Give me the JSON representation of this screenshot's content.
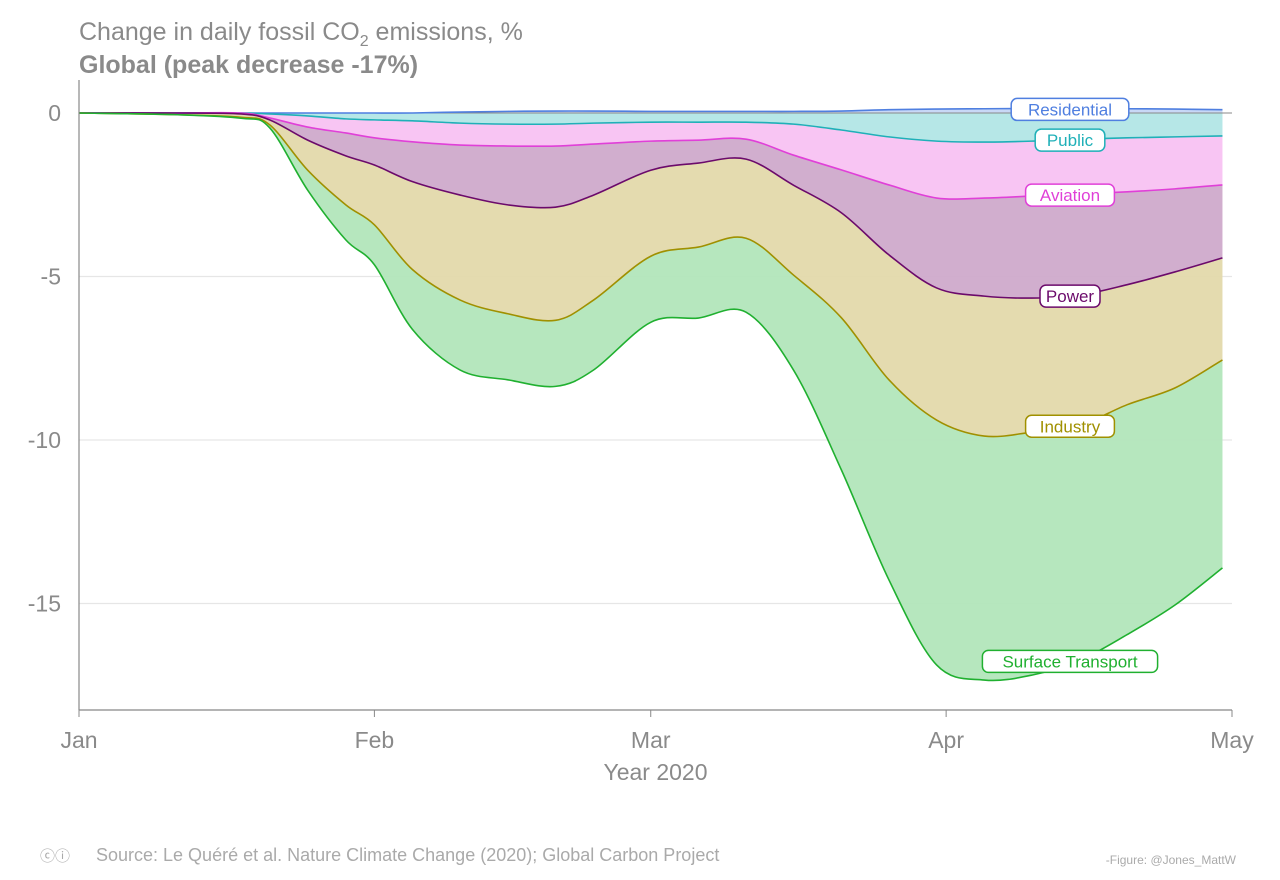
{
  "title": "Change in daily fossil CO",
  "title_sub2": "2",
  "title_rest": " emissions, %",
  "subtitle": "Global (peak decrease -17%)",
  "source": "Source: Le Quéré et al. Nature Climate Change (2020); Global Carbon Project",
  "credit": "Figure: @Jones_MattW",
  "license_icons": "cc-by-icon",
  "chart_data": {
    "type": "area",
    "stacked": true,
    "xlabel": "Year 2020",
    "ylabel": "",
    "xlim": [
      "2020-01-01",
      "2020-05-01"
    ],
    "ylim": [
      -18.2,
      1
    ],
    "x_ticks": [
      {
        "date": "2020-01-01",
        "label": "Jan"
      },
      {
        "date": "2020-02-01",
        "label": "Feb"
      },
      {
        "date": "2020-03-01",
        "label": "Mar"
      },
      {
        "date": "2020-04-01",
        "label": "Apr"
      },
      {
        "date": "2020-05-01",
        "label": "May"
      }
    ],
    "y_ticks": [
      0,
      -5,
      -10,
      -15
    ],
    "y_tick_labels": [
      "0",
      "-5",
      "-10",
      "-15"
    ],
    "grid": "horizontal",
    "legend": "inline labels",
    "x": [
      "2020-01-01",
      "2020-01-11",
      "2020-01-18",
      "2020-01-21",
      "2020-01-25",
      "2020-01-29",
      "2020-02-01",
      "2020-02-05",
      "2020-02-10",
      "2020-02-15",
      "2020-02-20",
      "2020-02-24",
      "2020-03-01",
      "2020-03-06",
      "2020-03-11",
      "2020-03-16",
      "2020-03-21",
      "2020-03-26",
      "2020-03-31",
      "2020-04-05",
      "2020-04-10",
      "2020-04-15",
      "2020-04-20",
      "2020-04-25",
      "2020-04-30"
    ],
    "series": [
      {
        "name": "Residential",
        "line": "#4f7fe0",
        "fill": "#c5d6f5",
        "values": [
          0,
          0,
          0,
          0,
          0,
          0,
          0,
          0,
          0.03,
          0.05,
          0.06,
          0.06,
          0.05,
          0.05,
          0.05,
          0.05,
          0.06,
          0.1,
          0.12,
          0.13,
          0.14,
          0.14,
          0.13,
          0.12,
          0.1
        ]
      },
      {
        "name": "Public",
        "line": "#1fb0b8",
        "fill": "#b2e6e6",
        "values": [
          0,
          0,
          0,
          -0.03,
          -0.09,
          -0.18,
          -0.21,
          -0.24,
          -0.31,
          -0.34,
          -0.34,
          -0.31,
          -0.28,
          -0.28,
          -0.28,
          -0.34,
          -0.52,
          -0.73,
          -0.86,
          -0.89,
          -0.86,
          -0.8,
          -0.76,
          -0.73,
          -0.7
        ]
      },
      {
        "name": "Aviation",
        "line": "#e040d8",
        "fill": "#f8c2f2",
        "values": [
          0,
          0,
          0,
          -0.12,
          -0.34,
          -0.43,
          -0.55,
          -0.64,
          -0.67,
          -0.67,
          -0.67,
          -0.64,
          -0.58,
          -0.55,
          -0.52,
          -0.95,
          -1.22,
          -1.47,
          -1.74,
          -1.71,
          -1.68,
          -1.68,
          -1.65,
          -1.59,
          -1.5
        ]
      },
      {
        "name": "Power",
        "line": "#6b0a6b",
        "fill": "#cfaacb",
        "values": [
          0,
          0,
          -0.03,
          -0.06,
          -0.4,
          -0.7,
          -0.83,
          -1.22,
          -1.53,
          -1.8,
          -1.87,
          -1.56,
          -0.89,
          -0.7,
          -0.61,
          -0.92,
          -1.31,
          -2.14,
          -2.75,
          -3.0,
          -3.12,
          -3.09,
          -2.84,
          -2.54,
          -2.23
        ]
      },
      {
        "name": "Industry",
        "line": "#a09000",
        "fill": "#e3d9ab",
        "values": [
          0,
          -0.05,
          -0.1,
          -0.15,
          -0.92,
          -1.5,
          -1.83,
          -2.69,
          -3.21,
          -3.33,
          -3.46,
          -3.21,
          -2.63,
          -2.57,
          -2.42,
          -2.75,
          -3.21,
          -3.82,
          -4.04,
          -4.28,
          -4.1,
          -3.98,
          -3.67,
          -3.55,
          -3.12
        ]
      },
      {
        "name": "Surface Transport",
        "line": "#20b030",
        "fill": "#b2e6bb",
        "values": [
          0,
          0,
          -0.03,
          -0.09,
          -0.61,
          -1.07,
          -1.22,
          -1.83,
          -2.14,
          -2.02,
          -2.02,
          -2.14,
          -2.02,
          -2.17,
          -2.26,
          -2.91,
          -4.65,
          -6.12,
          -7.49,
          -7.46,
          -7.43,
          -7.19,
          -7.03,
          -6.64,
          -6.36
        ]
      }
    ]
  }
}
